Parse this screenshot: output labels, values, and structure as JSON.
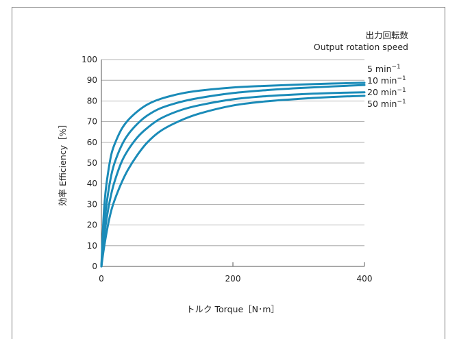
{
  "chart_data": {
    "type": "line",
    "title": "",
    "legend_title_jp": "出力回転数",
    "legend_title_en": "Output rotation speed",
    "xlabel": "トルク Torque［N･m］",
    "ylabel": "効率 Efficiency［%］",
    "xlim": [
      0,
      400
    ],
    "ylim": [
      0,
      100
    ],
    "xticks": [
      0,
      200,
      400
    ],
    "yticks": [
      0,
      10,
      20,
      30,
      40,
      50,
      60,
      70,
      80,
      90,
      100
    ],
    "grid": "horizontal",
    "legend_placement": "right",
    "line_color": "#1a8bb8",
    "series": [
      {
        "name": "5 min",
        "x": [
          0,
          3,
          6,
          10,
          15,
          20,
          30,
          40,
          55,
          70,
          90,
          120,
          150,
          200,
          250,
          300,
          350,
          400
        ],
        "values": [
          0,
          22,
          35,
          45,
          54,
          59,
          66,
          70.5,
          75,
          78.3,
          81,
          83.5,
          85,
          86.5,
          87.3,
          87.9,
          88.4,
          88.8
        ]
      },
      {
        "name": "10 min",
        "x": [
          0,
          3,
          6,
          10,
          15,
          20,
          30,
          40,
          55,
          70,
          90,
          120,
          150,
          200,
          250,
          300,
          350,
          400
        ],
        "values": [
          0,
          15,
          25,
          35,
          44,
          50,
          58,
          63.5,
          69,
          73,
          76.5,
          79.5,
          81.5,
          83.8,
          85.2,
          86.2,
          87,
          87.7
        ]
      },
      {
        "name": "20 min",
        "x": [
          0,
          3,
          6,
          10,
          15,
          20,
          30,
          40,
          55,
          70,
          90,
          120,
          150,
          200,
          250,
          300,
          350,
          400
        ],
        "values": [
          0,
          11,
          19,
          27,
          35,
          41,
          50,
          56,
          62.5,
          67,
          71.5,
          75.5,
          78,
          80.8,
          82.3,
          83.2,
          83.8,
          84.2
        ]
      },
      {
        "name": "50 min",
        "x": [
          0,
          3,
          6,
          10,
          15,
          20,
          30,
          40,
          55,
          70,
          90,
          120,
          150,
          200,
          250,
          300,
          350,
          400
        ],
        "values": [
          0,
          7,
          13,
          20,
          27,
          32,
          40,
          46.5,
          54,
          60,
          65.5,
          70.5,
          74,
          77.8,
          79.8,
          81,
          81.9,
          82.5
        ]
      }
    ],
    "legend_exponent": "−1"
  }
}
